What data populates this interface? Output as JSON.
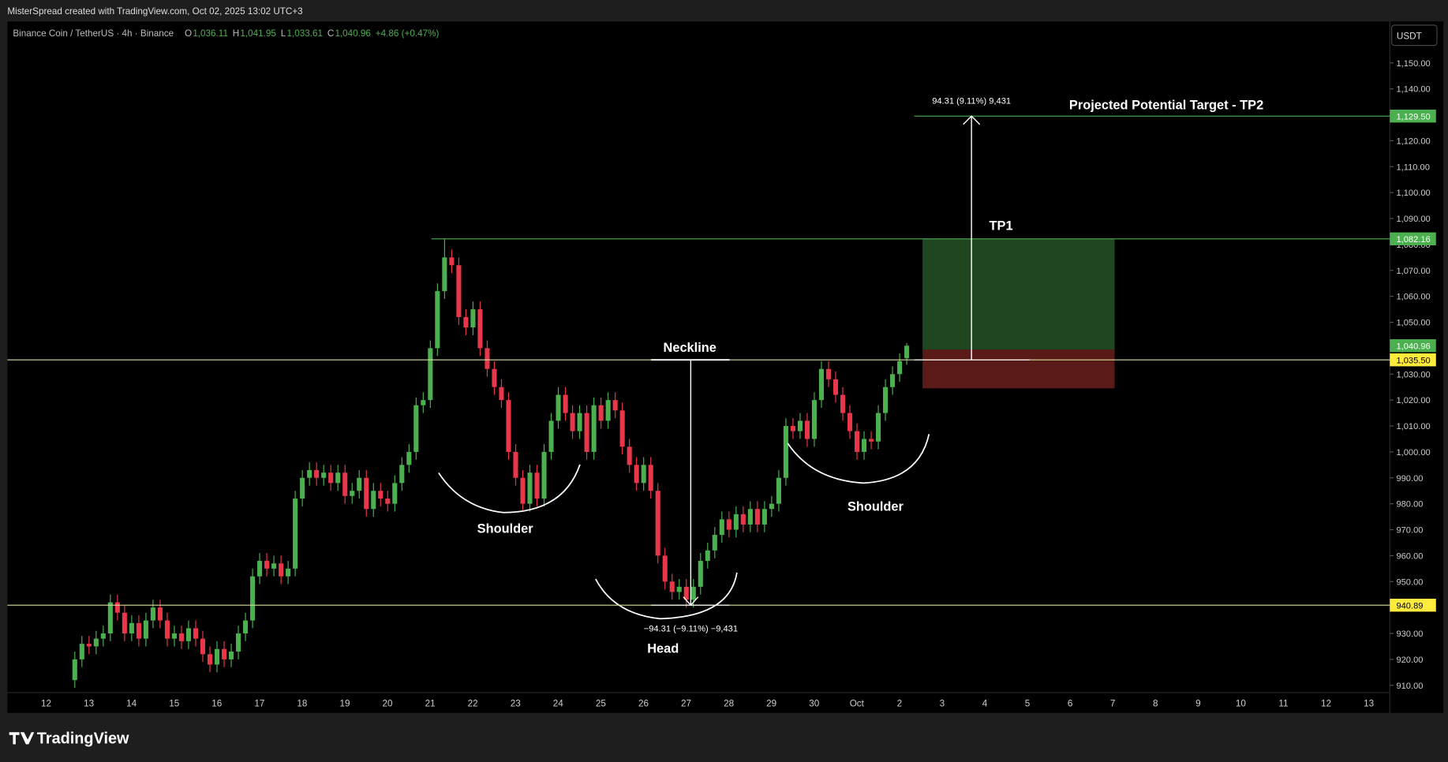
{
  "header": {
    "credit": "MisterSpread created with TradingView.com, Oct 02, 2025 13:02 UTC+3",
    "symbol": "Binance Coin / TetherUS · 4h · Binance",
    "ohlc": [
      {
        "key": "O",
        "value": "1,036.11"
      },
      {
        "key": "H",
        "value": "1,041.95"
      },
      {
        "key": "L",
        "value": "1,033.61"
      },
      {
        "key": "C",
        "value": "1,040.96"
      }
    ],
    "change": "+4.86 (+0.47%)",
    "currency": "USDT"
  },
  "footer": {
    "brand": "TradingView"
  },
  "chart_data": {
    "type": "candlestick",
    "categories": [
      "12",
      "13",
      "14",
      "15",
      "16",
      "17",
      "18",
      "19",
      "20",
      "21",
      "22",
      "23",
      "24",
      "25",
      "26",
      "27",
      "28",
      "29",
      "30",
      "Oct",
      "2",
      "3",
      "4",
      "5",
      "6",
      "7",
      "8",
      "9",
      "10",
      "11",
      "12",
      "13"
    ],
    "open": [
      912,
      920,
      926,
      925,
      928,
      930,
      942,
      938,
      930,
      934,
      928,
      935,
      940,
      935,
      928,
      930,
      927,
      932,
      928,
      922,
      918,
      924,
      920,
      923,
      930,
      935,
      952,
      958,
      955,
      957,
      952,
      955,
      982,
      990,
      993,
      990,
      992,
      988,
      992,
      983,
      985,
      990,
      978,
      985,
      982,
      980,
      988,
      995,
      1000,
      1018,
      1020,
      1040,
      1062,
      1075,
      1072,
      1052,
      1048,
      1055,
      1040,
      1032,
      1025,
      1020,
      1000,
      990,
      980,
      992,
      982,
      1000,
      1012,
      1022,
      1015,
      1008,
      1015,
      1000,
      1018,
      1012,
      1020,
      1016,
      1002,
      995,
      988,
      995,
      985,
      960,
      950,
      946,
      948,
      943,
      948,
      958,
      962,
      968,
      974,
      970,
      976,
      972,
      978,
      972,
      978,
      980,
      990,
      1010,
      1008,
      1012,
      1005,
      1020,
      1032,
      1028,
      1022,
      1015,
      1008,
      1000,
      1005,
      1004,
      1015,
      1025,
      1030,
      1036.11
    ],
    "high": [
      923,
      929,
      929,
      931,
      933,
      945,
      945,
      941,
      937,
      937,
      938,
      943,
      943,
      938,
      933,
      933,
      935,
      935,
      931,
      925,
      927,
      927,
      926,
      933,
      938,
      955,
      961,
      961,
      960,
      960,
      958,
      985,
      993,
      996,
      996,
      995,
      995,
      995,
      995,
      988,
      993,
      993,
      988,
      988,
      985,
      991,
      998,
      1003,
      1021,
      1023,
      1043,
      1065,
      1082,
      1078,
      1075,
      1055,
      1058,
      1058,
      1043,
      1035,
      1028,
      1023,
      1003,
      993,
      995,
      995,
      1003,
      1015,
      1025,
      1025,
      1018,
      1018,
      1018,
      1021,
      1021,
      1023,
      1023,
      1019,
      1005,
      998,
      998,
      998,
      988,
      963,
      953,
      951,
      951,
      951,
      961,
      965,
      971,
      977,
      977,
      979,
      979,
      981,
      981,
      981,
      983,
      993,
      1013,
      1013,
      1015,
      1015,
      1023,
      1035,
      1035,
      1031,
      1025,
      1018,
      1011,
      1008,
      1008,
      1018,
      1028,
      1033,
      1038,
      1041.95
    ],
    "low": [
      909,
      917,
      922,
      922,
      925,
      927,
      935,
      927,
      927,
      925,
      925,
      932,
      932,
      925,
      925,
      924,
      924,
      925,
      919,
      915,
      915,
      917,
      917,
      920,
      927,
      932,
      949,
      952,
      952,
      949,
      949,
      952,
      979,
      987,
      987,
      987,
      985,
      985,
      980,
      980,
      982,
      975,
      975,
      979,
      977,
      977,
      985,
      992,
      997,
      1015,
      1017,
      1037,
      1059,
      1069,
      1049,
      1045,
      1045,
      1037,
      1029,
      1022,
      1017,
      997,
      987,
      977,
      977,
      979,
      979,
      997,
      1009,
      1012,
      1005,
      1005,
      997,
      997,
      1009,
      1009,
      1013,
      999,
      992,
      985,
      985,
      982,
      957,
      947,
      943,
      943,
      940,
      940,
      945,
      955,
      959,
      965,
      967,
      967,
      969,
      969,
      969,
      969,
      975,
      977,
      987,
      1005,
      1005,
      1002,
      1002,
      1017,
      1025,
      1019,
      1012,
      1005,
      997,
      997,
      1001,
      1001,
      1012,
      1022,
      1027,
      1033.61
    ],
    "close": [
      920,
      926,
      925,
      928,
      930,
      942,
      938,
      930,
      934,
      928,
      935,
      940,
      935,
      928,
      930,
      927,
      932,
      928,
      922,
      918,
      924,
      920,
      923,
      930,
      935,
      952,
      958,
      955,
      957,
      952,
      955,
      982,
      990,
      993,
      990,
      992,
      988,
      992,
      983,
      985,
      990,
      978,
      985,
      982,
      980,
      988,
      995,
      1000,
      1018,
      1020,
      1040,
      1062,
      1075,
      1072,
      1052,
      1048,
      1055,
      1040,
      1032,
      1025,
      1020,
      1000,
      990,
      980,
      992,
      982,
      1000,
      1012,
      1022,
      1015,
      1008,
      1015,
      1000,
      1018,
      1012,
      1020,
      1016,
      1002,
      995,
      988,
      995,
      985,
      960,
      950,
      946,
      948,
      943,
      948,
      958,
      962,
      968,
      974,
      970,
      976,
      972,
      978,
      972,
      978,
      980,
      990,
      1010,
      1008,
      1012,
      1005,
      1020,
      1032,
      1028,
      1022,
      1015,
      1008,
      1000,
      1005,
      1004,
      1015,
      1025,
      1030,
      1035,
      1040.96
    ],
    "up_color": "#4caf50",
    "down_color": "#e8364a",
    "ylim": [
      907.2,
      1166
    ],
    "yticks": [
      {
        "value": 910,
        "label": "910.00"
      },
      {
        "value": 920,
        "label": "920.00"
      },
      {
        "value": 930,
        "label": "930.00"
      },
      {
        "value": 940,
        "label": "940.00"
      },
      {
        "value": 950,
        "label": "950.00"
      },
      {
        "value": 960,
        "label": "960.00"
      },
      {
        "value": 970,
        "label": "970.00"
      },
      {
        "value": 980,
        "label": "980.00"
      },
      {
        "value": 990,
        "label": "990.00"
      },
      {
        "value": 1000,
        "label": "1,000.00"
      },
      {
        "value": 1010,
        "label": "1,010.00"
      },
      {
        "value": 1020,
        "label": "1,020.00"
      },
      {
        "value": 1030,
        "label": "1,030.00"
      },
      {
        "value": 1040,
        "label": "1,040.00"
      },
      {
        "value": 1050,
        "label": "1,050.00"
      },
      {
        "value": 1060,
        "label": "1,060.00"
      },
      {
        "value": 1070,
        "label": "1,070.00"
      },
      {
        "value": 1080,
        "label": "1,080.00"
      },
      {
        "value": 1090,
        "label": "1,090.00"
      },
      {
        "value": 1100,
        "label": "1,100.00"
      },
      {
        "value": 1110,
        "label": "1,110.00"
      },
      {
        "value": 1120,
        "label": "1,120.00"
      },
      {
        "value": 1130,
        "label": "1,130.00"
      },
      {
        "value": 1140,
        "label": "1,140.00"
      },
      {
        "value": 1150,
        "label": "1,150.00"
      }
    ],
    "levels": [
      {
        "value": 1129.5,
        "label": "1,129.50",
        "color": "#4caf50"
      },
      {
        "value": 1082.16,
        "label": "1,082.16",
        "color": "#4caf50"
      },
      {
        "value": 1040.96,
        "label": "1,040.96",
        "color": "#4caf50"
      },
      {
        "value": 1035.5,
        "label": "1,035.50",
        "color": "#ffeb3b"
      },
      {
        "value": 940.89,
        "label": "940.89",
        "color": "#ffeb3b"
      }
    ],
    "position": {
      "target": 1082.16,
      "entry": 1039.5,
      "stop": 1024.5
    },
    "annotations": {
      "neckline": "Neckline",
      "left_shoulder": "Shoulder",
      "right_shoulder": "Shoulder",
      "head": "Head",
      "tp1": "TP1",
      "tp2": "Projected Potential Target - TP2",
      "up_measure": "94.31 (9.11%) 9,431",
      "down_measure": "−94.31 (−9.11%) −9,431"
    }
  }
}
